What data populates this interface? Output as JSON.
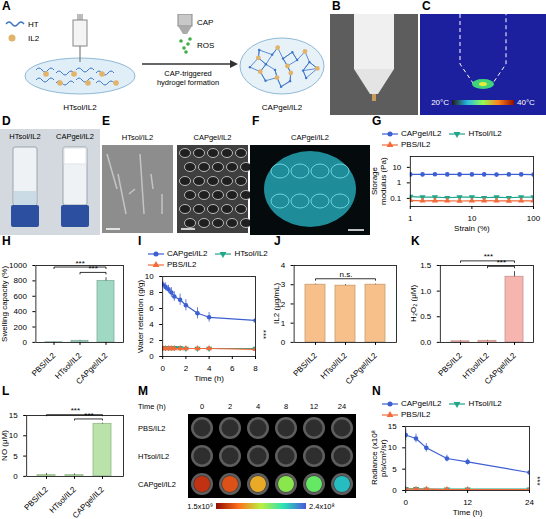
{
  "images": [
    {
      "panel": "A",
      "type": "schematic",
      "legend": [
        "HT",
        "IL2"
      ],
      "before": "HTsol/IL2",
      "device": "CAP",
      "species": "ROS",
      "step": "CAP-triggered hydrogel formation",
      "after": "CAPgel/IL2"
    },
    {
      "panel": "B",
      "type": "photo"
    },
    {
      "panel": "C",
      "type": "thermal",
      "colorbar": [
        {
          "value": 20,
          "label": "20°C"
        },
        {
          "value": 40,
          "label": "40°C"
        }
      ]
    },
    {
      "panel": "D",
      "type": "vials",
      "labels": [
        "HTsol/IL2",
        "CAPgel/IL2"
      ]
    },
    {
      "panel": "E",
      "type": "sem",
      "labels": [
        "HTsol/IL2",
        "CAPgel/IL2"
      ]
    },
    {
      "panel": "F",
      "type": "fluorescence",
      "labels": [
        "CAPgel/IL2"
      ]
    },
    {
      "panel": "M",
      "type": "ivis",
      "x_label": "Time (h)",
      "times": [
        0,
        2,
        4,
        8,
        12,
        24
      ],
      "rows": [
        "PBS/IL2",
        "HTsol/IL2",
        "CAPgel/IL2"
      ],
      "colorbar": [
        {
          "value": 1500000000,
          "label": "1.5x10⁹"
        },
        {
          "value": 240000000,
          "label": "2.4x10⁸"
        }
      ]
    }
  ],
  "chart_data": [
    {
      "panel": "G",
      "type": "line",
      "x_label": "Strain (%)",
      "y_label": "Storage modulus (Pa)",
      "log": true,
      "legend": "top",
      "x": [
        1,
        1.58,
        2.51,
        3.98,
        6.31,
        10,
        15.8,
        25.1,
        39.8,
        63.1,
        100
      ],
      "xlim": [
        1,
        100
      ],
      "xticks": [
        1,
        10,
        100
      ],
      "ylim": [
        0.03,
        50
      ],
      "yticks": [
        0.1,
        1,
        10
      ],
      "series": [
        {
          "name": "CAPgel/IL2",
          "color": "#3c5fd1",
          "marker": "circle",
          "values": [
            3.5,
            3.5,
            3.6,
            3.5,
            3.5,
            3.5,
            3.5,
            3.4,
            3.5,
            3.5,
            3.4
          ]
        },
        {
          "name": "HTsol/IL2",
          "color": "#1fa58a",
          "marker": "triangle-down",
          "values": [
            0.13,
            0.12,
            0.12,
            0.11,
            0.12,
            0.12,
            0.11,
            0.12,
            0.11,
            0.12,
            0.12
          ]
        },
        {
          "name": "PBS/IL2",
          "color": "#f26b3a",
          "marker": "triangle",
          "values": [
            0.075,
            0.07,
            0.072,
            0.07,
            0.068,
            0.07,
            0.071,
            0.07,
            0.069,
            0.07,
            0.07
          ]
        }
      ]
    },
    {
      "panel": "H",
      "type": "bar",
      "y_label": "Swelling capacity (%)",
      "categories": [
        "PBS/IL2",
        "HTsol/IL2",
        "CAPgel/IL2"
      ],
      "values": [
        2,
        20,
        800
      ],
      "error": [
        1,
        6,
        40
      ],
      "color": "#9fd8c3",
      "ylim": [
        0,
        1000
      ],
      "yticks": [
        0,
        200,
        400,
        600,
        800,
        1000
      ],
      "annotations": [
        {
          "text": "***",
          "between": [
            "HTsol/IL2",
            "CAPgel/IL2"
          ]
        },
        {
          "text": "***",
          "between": [
            "PBS/IL2",
            "CAPgel/IL2"
          ]
        }
      ]
    },
    {
      "panel": "I",
      "type": "line",
      "x_label": "Time (h)",
      "y_label": "Water retention (g/g)",
      "legend": "top",
      "x": [
        0,
        0.25,
        0.5,
        0.75,
        1,
        1.5,
        2,
        3,
        4,
        8
      ],
      "xlim": [
        0,
        8
      ],
      "xticks": [
        0,
        2,
        4,
        6,
        8
      ],
      "ylim": [
        0,
        10
      ],
      "yticks": [
        0,
        2,
        4,
        6,
        8,
        10
      ],
      "series": [
        {
          "name": "CAPgel/IL2",
          "color": "#3c5fd1",
          "marker": "circle",
          "values": [
            9.0,
            8.7,
            8.4,
            8.0,
            7.5,
            7.1,
            6.4,
            5.4,
            4.9,
            4.5
          ],
          "error": [
            0.4,
            0.5,
            0.5,
            0.6,
            0.6,
            0.7,
            0.7,
            0.7,
            0.6,
            0.5
          ]
        },
        {
          "name": "HTsol/IL2",
          "color": "#1fa58a",
          "marker": "triangle-down",
          "values": [
            1.1,
            1.1,
            1.1,
            1.1,
            1.1,
            1.1,
            1.0,
            1.0,
            1.0,
            1.0
          ],
          "error": [
            0.1,
            0.1,
            0.1,
            0.1,
            0.1,
            0.1,
            0.1,
            0.1,
            0.1,
            0.1
          ]
        },
        {
          "name": "PBS/IL2",
          "color": "#f26b3a",
          "marker": "triangle",
          "values": [
            1.0,
            1.0,
            1.0,
            1.0,
            1.0,
            1.0,
            1.0,
            1.0,
            1.0,
            0.9
          ],
          "error": [
            0.1,
            0.1,
            0.1,
            0.1,
            0.1,
            0.1,
            0.1,
            0.1,
            0.1,
            0.1
          ]
        }
      ],
      "annotations": [
        {
          "text": "***",
          "between": [
            "CAPgel/IL2",
            "HTsol/IL2"
          ]
        }
      ]
    },
    {
      "panel": "J",
      "type": "bar",
      "y_label": "IL2 (μg/mL)",
      "categories": [
        "PBS/IL2",
        "HTsol/IL2",
        "CAPgel/IL2"
      ],
      "values": [
        3.0,
        2.95,
        3.0
      ],
      "error": [
        0.03,
        0.05,
        0.03
      ],
      "color": "#f7c08a",
      "ylim": [
        0,
        4
      ],
      "yticks": [
        0,
        1,
        2,
        3,
        4
      ],
      "annotations": [
        {
          "text": "n.s.",
          "between": [
            "PBS/IL2",
            "CAPgel/IL2"
          ]
        }
      ]
    },
    {
      "panel": "K",
      "type": "bar",
      "y_label": "H₂O₂ (μM)",
      "categories": [
        "PBS/IL2",
        "HTsol/IL2",
        "CAPgel/IL2"
      ],
      "values": [
        0.02,
        0.03,
        1.28
      ],
      "error": [
        0.01,
        0.01,
        0.1
      ],
      "color": "#f7b5b0",
      "ylim": [
        0,
        1.5
      ],
      "yticks": [
        {
          "value": 0,
          "label": "0.0"
        },
        {
          "value": 0.5,
          "label": "0.5"
        },
        {
          "value": 1,
          "label": "1.0"
        },
        {
          "value": 1.5,
          "label": "1.5"
        }
      ],
      "annotations": [
        {
          "text": "***",
          "between": [
            "HTsol/IL2",
            "CAPgel/IL2"
          ]
        },
        {
          "text": "***",
          "between": [
            "PBS/IL2",
            "CAPgel/IL2"
          ]
        }
      ]
    },
    {
      "panel": "L",
      "type": "bar",
      "y_label": "NO (μM)",
      "categories": [
        "PBS/IL2",
        "HTsol/IL2",
        "CAPgel/IL2"
      ],
      "values": [
        0.3,
        0.3,
        12.9
      ],
      "error": [
        0.4,
        0.3,
        0.2
      ],
      "color": "#b9e3a9",
      "ylim": [
        0,
        15
      ],
      "yticks": [
        0,
        5,
        10,
        15
      ],
      "annotations": [
        {
          "text": "***",
          "between": [
            "HTsol/IL2",
            "CAPgel/IL2"
          ]
        },
        {
          "text": "***",
          "between": [
            "PBS/IL2",
            "CAPgel/IL2"
          ]
        }
      ]
    },
    {
      "panel": "N",
      "type": "line",
      "x_label": "Time (h)",
      "y_label": "Radiance (x10⁸ p/s/cm²/sr)",
      "legend": "top",
      "x": [
        0,
        2,
        4,
        8,
        12,
        24
      ],
      "xlim": [
        0,
        24
      ],
      "xticks": [
        0,
        12,
        24
      ],
      "ylim": [
        0,
        15
      ],
      "yticks": [
        0,
        5,
        10,
        15
      ],
      "series": [
        {
          "name": "CAPgel/IL2",
          "color": "#3c5fd1",
          "marker": "circle",
          "values": [
            13.0,
            12.2,
            10.0,
            7.5,
            6.7,
            4.2
          ],
          "error": [
            1.2,
            1.0,
            1.0,
            0.8,
            0.7,
            0.9
          ]
        },
        {
          "name": "HTsol/IL2",
          "color": "#1fa58a",
          "marker": "triangle-down",
          "values": [
            0.4,
            0.4,
            0.3,
            0.3,
            0.3,
            0.3
          ],
          "error": [
            0.1,
            0.1,
            0.1,
            0.1,
            0.1,
            0.1
          ]
        },
        {
          "name": "PBS/IL2",
          "color": "#f26b3a",
          "marker": "triangle",
          "values": [
            0.3,
            0.3,
            0.3,
            0.2,
            0.2,
            0.2
          ],
          "error": [
            0.1,
            0.1,
            0.1,
            0.1,
            0.1,
            0.1
          ]
        }
      ],
      "annotations": [
        {
          "text": "***",
          "between": [
            "CAPgel/IL2",
            "HTsol/IL2"
          ]
        }
      ]
    }
  ]
}
